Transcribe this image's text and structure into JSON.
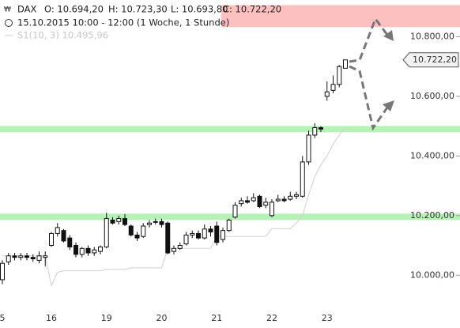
{
  "header": {
    "symbol": "DAX",
    "open": "O: 10.694,20",
    "high": "H: 10.723,30",
    "low": "L: 10.693,80",
    "close": "C: 10.722,20",
    "period": "15.10.2015 10:00 - 12:00 (1 Woche, 1 Stunde)",
    "indicator": "S1(10, 3) 10.495,96"
  },
  "chart_data": {
    "type": "candlestick",
    "categories": [
      "5",
      null,
      null,
      null,
      null,
      null,
      null,
      null,
      "16",
      null,
      null,
      null,
      null,
      null,
      null,
      null,
      null,
      "19",
      null,
      null,
      null,
      null,
      null,
      null,
      null,
      null,
      "20",
      null,
      null,
      null,
      null,
      null,
      null,
      null,
      null,
      "21",
      null,
      null,
      null,
      null,
      null,
      null,
      null,
      null,
      "22",
      null,
      null,
      null,
      null,
      null,
      null,
      null,
      null,
      "23",
      null,
      null,
      null
    ],
    "open": [
      9985,
      10045,
      10065,
      10060,
      10065,
      10060,
      10050,
      10060,
      10100,
      10140,
      10150,
      10125,
      10100,
      10070,
      10090,
      10075,
      10080,
      10095,
      10185,
      10180,
      10190,
      10165,
      10135,
      10130,
      10170,
      10180,
      10180,
      10175,
      10080,
      10090,
      10105,
      10135,
      10140,
      10125,
      10155,
      10165,
      10120,
      10150,
      10195,
      10240,
      10250,
      10250,
      10265,
      10235,
      10200,
      10250,
      10255,
      10255,
      10265,
      10265,
      10380,
      10470,
      10495,
      10600,
      10620,
      10640,
      10694.2
    ],
    "high": [
      10050,
      10075,
      10075,
      10075,
      10075,
      10070,
      10080,
      10080,
      10145,
      10175,
      10155,
      10135,
      10110,
      10095,
      10100,
      10095,
      10100,
      10210,
      10195,
      10200,
      10205,
      10170,
      10145,
      10175,
      10185,
      10190,
      10190,
      10180,
      10100,
      10110,
      10145,
      10150,
      10150,
      10170,
      10165,
      10180,
      10160,
      10190,
      10245,
      10260,
      10265,
      10275,
      10270,
      10260,
      10255,
      10270,
      10265,
      10280,
      10280,
      10400,
      10485,
      10510,
      10500,
      10650,
      10670,
      10705,
      10723.3
    ],
    "low": [
      9970,
      10035,
      10050,
      10050,
      10050,
      10045,
      10040,
      10030,
      10095,
      10130,
      10110,
      10085,
      10060,
      10060,
      10065,
      10065,
      10070,
      10090,
      10170,
      10170,
      10165,
      10130,
      10115,
      10125,
      10160,
      10170,
      10160,
      10070,
      10070,
      10085,
      10100,
      10125,
      10120,
      10120,
      10130,
      10100,
      10110,
      10145,
      10190,
      10230,
      10240,
      10245,
      10225,
      10225,
      10195,
      10245,
      10245,
      10250,
      10255,
      10260,
      10370,
      10460,
      10480,
      10585,
      10610,
      10630,
      10693.8
    ],
    "close": [
      10040,
      10065,
      10060,
      10065,
      10060,
      10055,
      10065,
      10065,
      10140,
      10160,
      10115,
      10095,
      10070,
      10090,
      10075,
      10085,
      10095,
      10190,
      10175,
      10190,
      10170,
      10135,
      10125,
      10165,
      10175,
      10180,
      10170,
      10075,
      10090,
      10100,
      10135,
      10140,
      10125,
      10155,
      10145,
      10110,
      10150,
      10185,
      10235,
      10250,
      10245,
      10260,
      10230,
      10245,
      10245,
      10255,
      10250,
      10265,
      10270,
      10380,
      10470,
      10495,
      10490,
      10615,
      10640,
      10700,
      10722.2
    ],
    "close_label": "10.722,20",
    "indicator_values": [
      10065,
      10065,
      10065,
      10065,
      10065,
      10065,
      10065,
      10065,
      9965,
      10010,
      10015,
      10015,
      10015,
      10015,
      10015,
      10015,
      10015,
      10020,
      10020,
      10020,
      10020,
      10025,
      10025,
      10025,
      10025,
      10025,
      10025,
      10090,
      10090,
      10090,
      10090,
      10090,
      10090,
      10090,
      10090,
      10130,
      10130,
      10130,
      10130,
      10130,
      10130,
      10130,
      10130,
      10130,
      10156,
      10156,
      10156,
      10156,
      10175,
      10200,
      10270,
      10330,
      10370,
      10400,
      10440,
      10470,
      10495.96
    ],
    "indicator_color": "#d0d0d0",
    "levels": [
      10490,
      10196
    ],
    "level_color": "#b6f2b6",
    "zone": [
      10832,
      10906
    ],
    "zone_color": "#fcc0c0",
    "ylim": [
      9900,
      10923
    ],
    "yticks": [
      {
        "value": 10000,
        "label": "10.000,00"
      },
      {
        "value": 10200,
        "label": "10.200,00"
      },
      {
        "value": 10400,
        "label": "10.400,00"
      },
      {
        "value": 10600,
        "label": "10.600,00"
      },
      {
        "value": 10800,
        "label": "10.800,00"
      }
    ]
  }
}
